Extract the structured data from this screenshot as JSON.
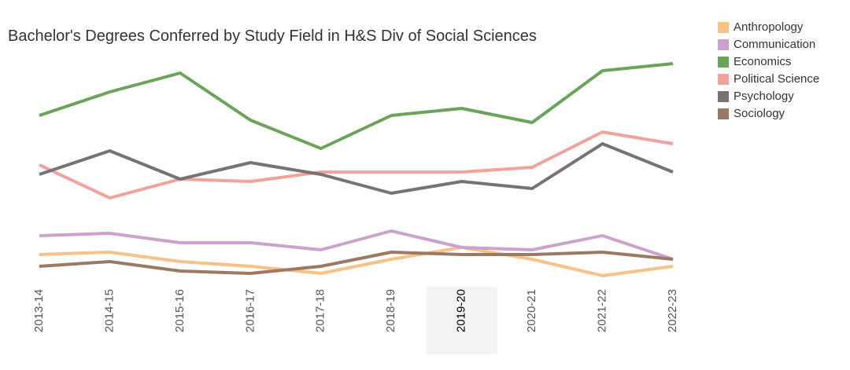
{
  "chart_data": {
    "type": "line",
    "title": "Bachelor's Degrees Conferred by Study Field in H&S Div of Social Sciences",
    "categories": [
      "2013-14",
      "2014-15",
      "2015-16",
      "2016-17",
      "2017-18",
      "2018-19",
      "2019-20",
      "2020-21",
      "2021-22",
      "2022-23"
    ],
    "highlight_index": 6,
    "ylim": [
      0,
      100
    ],
    "series": [
      {
        "name": "Anthropology",
        "color": "#f5c287",
        "values": [
          12,
          13,
          9,
          7,
          4,
          10,
          15,
          10,
          3,
          7
        ]
      },
      {
        "name": "Communication",
        "color": "#c9a3cc",
        "values": [
          20,
          21,
          17,
          17,
          14,
          22,
          15,
          14,
          20,
          10
        ]
      },
      {
        "name": "Economics",
        "color": "#6aa35a",
        "values": [
          71,
          81,
          89,
          69,
          57,
          71,
          74,
          68,
          90,
          93
        ]
      },
      {
        "name": "Political Science",
        "color": "#f0a39c",
        "values": [
          50,
          36,
          44,
          43,
          47,
          47,
          47,
          49,
          64,
          59
        ]
      },
      {
        "name": "Psychology",
        "color": "#7a7272",
        "values": [
          46,
          56,
          44,
          51,
          46,
          38,
          43,
          40,
          59,
          47
        ]
      },
      {
        "name": "Sociology",
        "color": "#9a7a66",
        "values": [
          7,
          9,
          5,
          4,
          7,
          13,
          12,
          12,
          13,
          10
        ]
      }
    ]
  }
}
